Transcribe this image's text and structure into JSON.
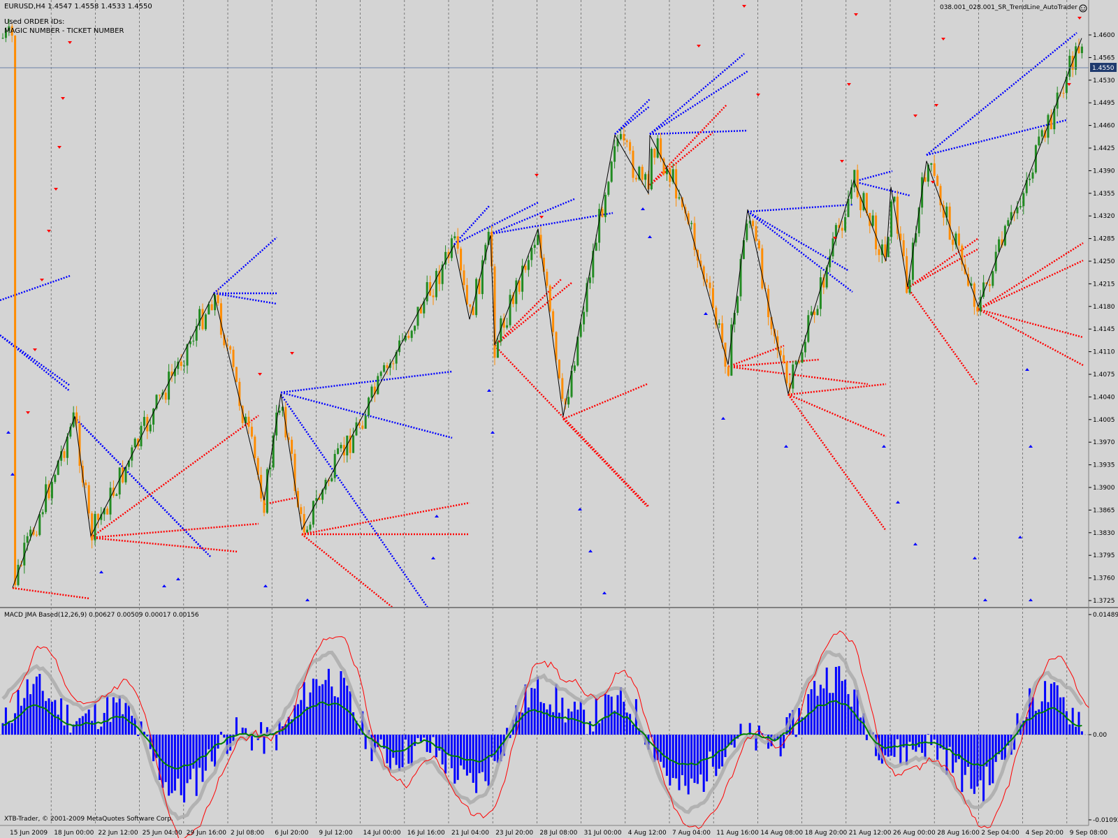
{
  "header": {
    "symbol_line": "EURUSD,H4  1.4547 1.4558 1.4533 1.4550",
    "used_ids": "Used ORDER IDs:",
    "magic_ticket": "MAGIC NUMBER - TICKET NUMBER",
    "expert_name": "038.001_028.001_SR_TrendLine_AutoTrader",
    "expert_icon": "smiley-icon"
  },
  "price_axis": {
    "labels": [
      "1.4600",
      "1.4565",
      "1.4530",
      "1.4495",
      "1.4460",
      "1.4425",
      "1.4390",
      "1.4355",
      "1.4320",
      "1.4285",
      "1.4250",
      "1.4215",
      "1.4180",
      "1.4145",
      "1.4110",
      "1.4075",
      "1.4040",
      "1.4005",
      "1.3970",
      "1.3935",
      "1.3900",
      "1.3865",
      "1.3830",
      "1.3795",
      "1.3760",
      "1.3725"
    ],
    "current": "1.4550"
  },
  "macd": {
    "title": "MACD JMA Based(12,26,9) 0.00627 0.00509 0.00017 0.00156",
    "labels": [
      "0.01489",
      "0.00",
      "-0.01092"
    ]
  },
  "time_axis": [
    "15 Jun 2009",
    "18 Jun 00:00",
    "22 Jun 12:00",
    "25 Jun 04:00",
    "29 Jun 16:00",
    "2 Jul 08:00",
    "6 Jul 20:00",
    "9 Jul 12:00",
    "14 Jul 00:00",
    "16 Jul 16:00",
    "21 Jul 04:00",
    "23 Jul 20:00",
    "28 Jul 08:00",
    "31 Jul 00:00",
    "4 Aug 12:00",
    "7 Aug 04:00",
    "11 Aug 16:00",
    "14 Aug 08:00",
    "18 Aug 20:00",
    "21 Aug 12:00",
    "26 Aug 00:00",
    "28 Aug 16:00",
    "2 Sep 04:00",
    "4 Sep 20:00",
    "9 Sep 08:00"
  ],
  "footer": "XTB-Trader, © 2001-2009 MetaQuotes Software Corp.",
  "colors": {
    "background": "#d4d4d4",
    "bull": "#228b22",
    "bear": "#ff8c00",
    "support": "#0000ff",
    "resistance": "#ff0000",
    "zigzag": "#000000",
    "macd_hist": "#0000ff",
    "macd_signal": "#008000",
    "macd_line": "#ff0000",
    "macd_smooth": "#a9a9a9"
  },
  "chart_data": [
    {
      "type": "candlestick",
      "symbol": "EURUSD",
      "timeframe": "H4",
      "ohlc_last": {
        "open": 1.4547,
        "high": 1.4558,
        "low": 1.4533,
        "close": 1.455
      },
      "ylim": [
        1.372,
        1.4625
      ],
      "zigzag": {
        "x": [
          "15 Jun 2009",
          "18 Jun 00:00",
          "22 Jun 12:00",
          "29 Jun 16:00",
          "3 Jul",
          "6 Jul 20:00",
          "8 Jul",
          "21 Jul 04:00",
          "22 Jul",
          "23 Jul 04:00",
          "24 Jul",
          "27 Jul",
          "29 Jul",
          "3 Aug",
          "4 Aug",
          "5 Aug",
          "6 Aug",
          "12 Aug",
          "13 Aug",
          "17 Aug",
          "20 Aug",
          "24 Aug",
          "25 Aug",
          "27 Aug",
          "31 Aug",
          "3 Sep",
          "9 Sep 08:00"
        ],
        "y": [
          1.3745,
          1.401,
          1.3825,
          1.42,
          1.388,
          1.4045,
          1.3835,
          1.4275,
          1.416,
          1.429,
          1.412,
          1.43,
          1.401,
          1.4445,
          1.4355,
          1.4445,
          1.435,
          1.409,
          1.433,
          1.4045,
          1.4375,
          1.425,
          1.4365,
          1.421,
          1.4405,
          1.418,
          1.4595
        ]
      }
    },
    {
      "type": "bar",
      "name": "MACD JMA Based(12,26,9)",
      "params": [
        12,
        26,
        9
      ],
      "values_last": [
        0.00627,
        0.00509,
        0.00017,
        0.00156
      ],
      "ylim": [
        -0.01092,
        0.01489
      ]
    }
  ]
}
